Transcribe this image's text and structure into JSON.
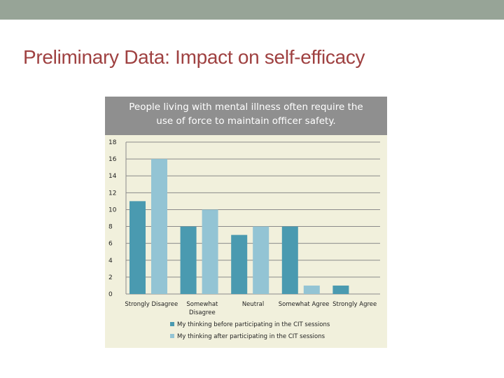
{
  "slide": {
    "title": "Preliminary Data: Impact on self-efficacy",
    "band_color": "#97a497",
    "title_color": "#9f4141"
  },
  "chart_data": {
    "type": "bar",
    "title_lines": [
      "People living with mental illness often require the",
      "use of force to maintain officer safety."
    ],
    "categories": [
      [
        "Strongly Disagree"
      ],
      [
        "Somewhat",
        "Disagree"
      ],
      [
        "Neutral"
      ],
      [
        "Somewhat Agree"
      ],
      [
        "Strongly Agree"
      ]
    ],
    "series": [
      {
        "name": "My thinking before participating in the CIT sessions",
        "color": "#4a9ab0",
        "values": [
          11,
          8,
          7,
          8,
          1
        ]
      },
      {
        "name": "My thinking after participating in the CIT sessions",
        "color": "#93c4d4",
        "values": [
          16,
          10,
          8,
          1,
          0
        ]
      }
    ],
    "yticks": [
      0,
      2,
      4,
      6,
      8,
      10,
      12,
      14,
      16,
      18
    ],
    "ylim": [
      0,
      18
    ],
    "grid": true,
    "legend_position": "bottom",
    "xlabel": "",
    "ylabel": ""
  }
}
